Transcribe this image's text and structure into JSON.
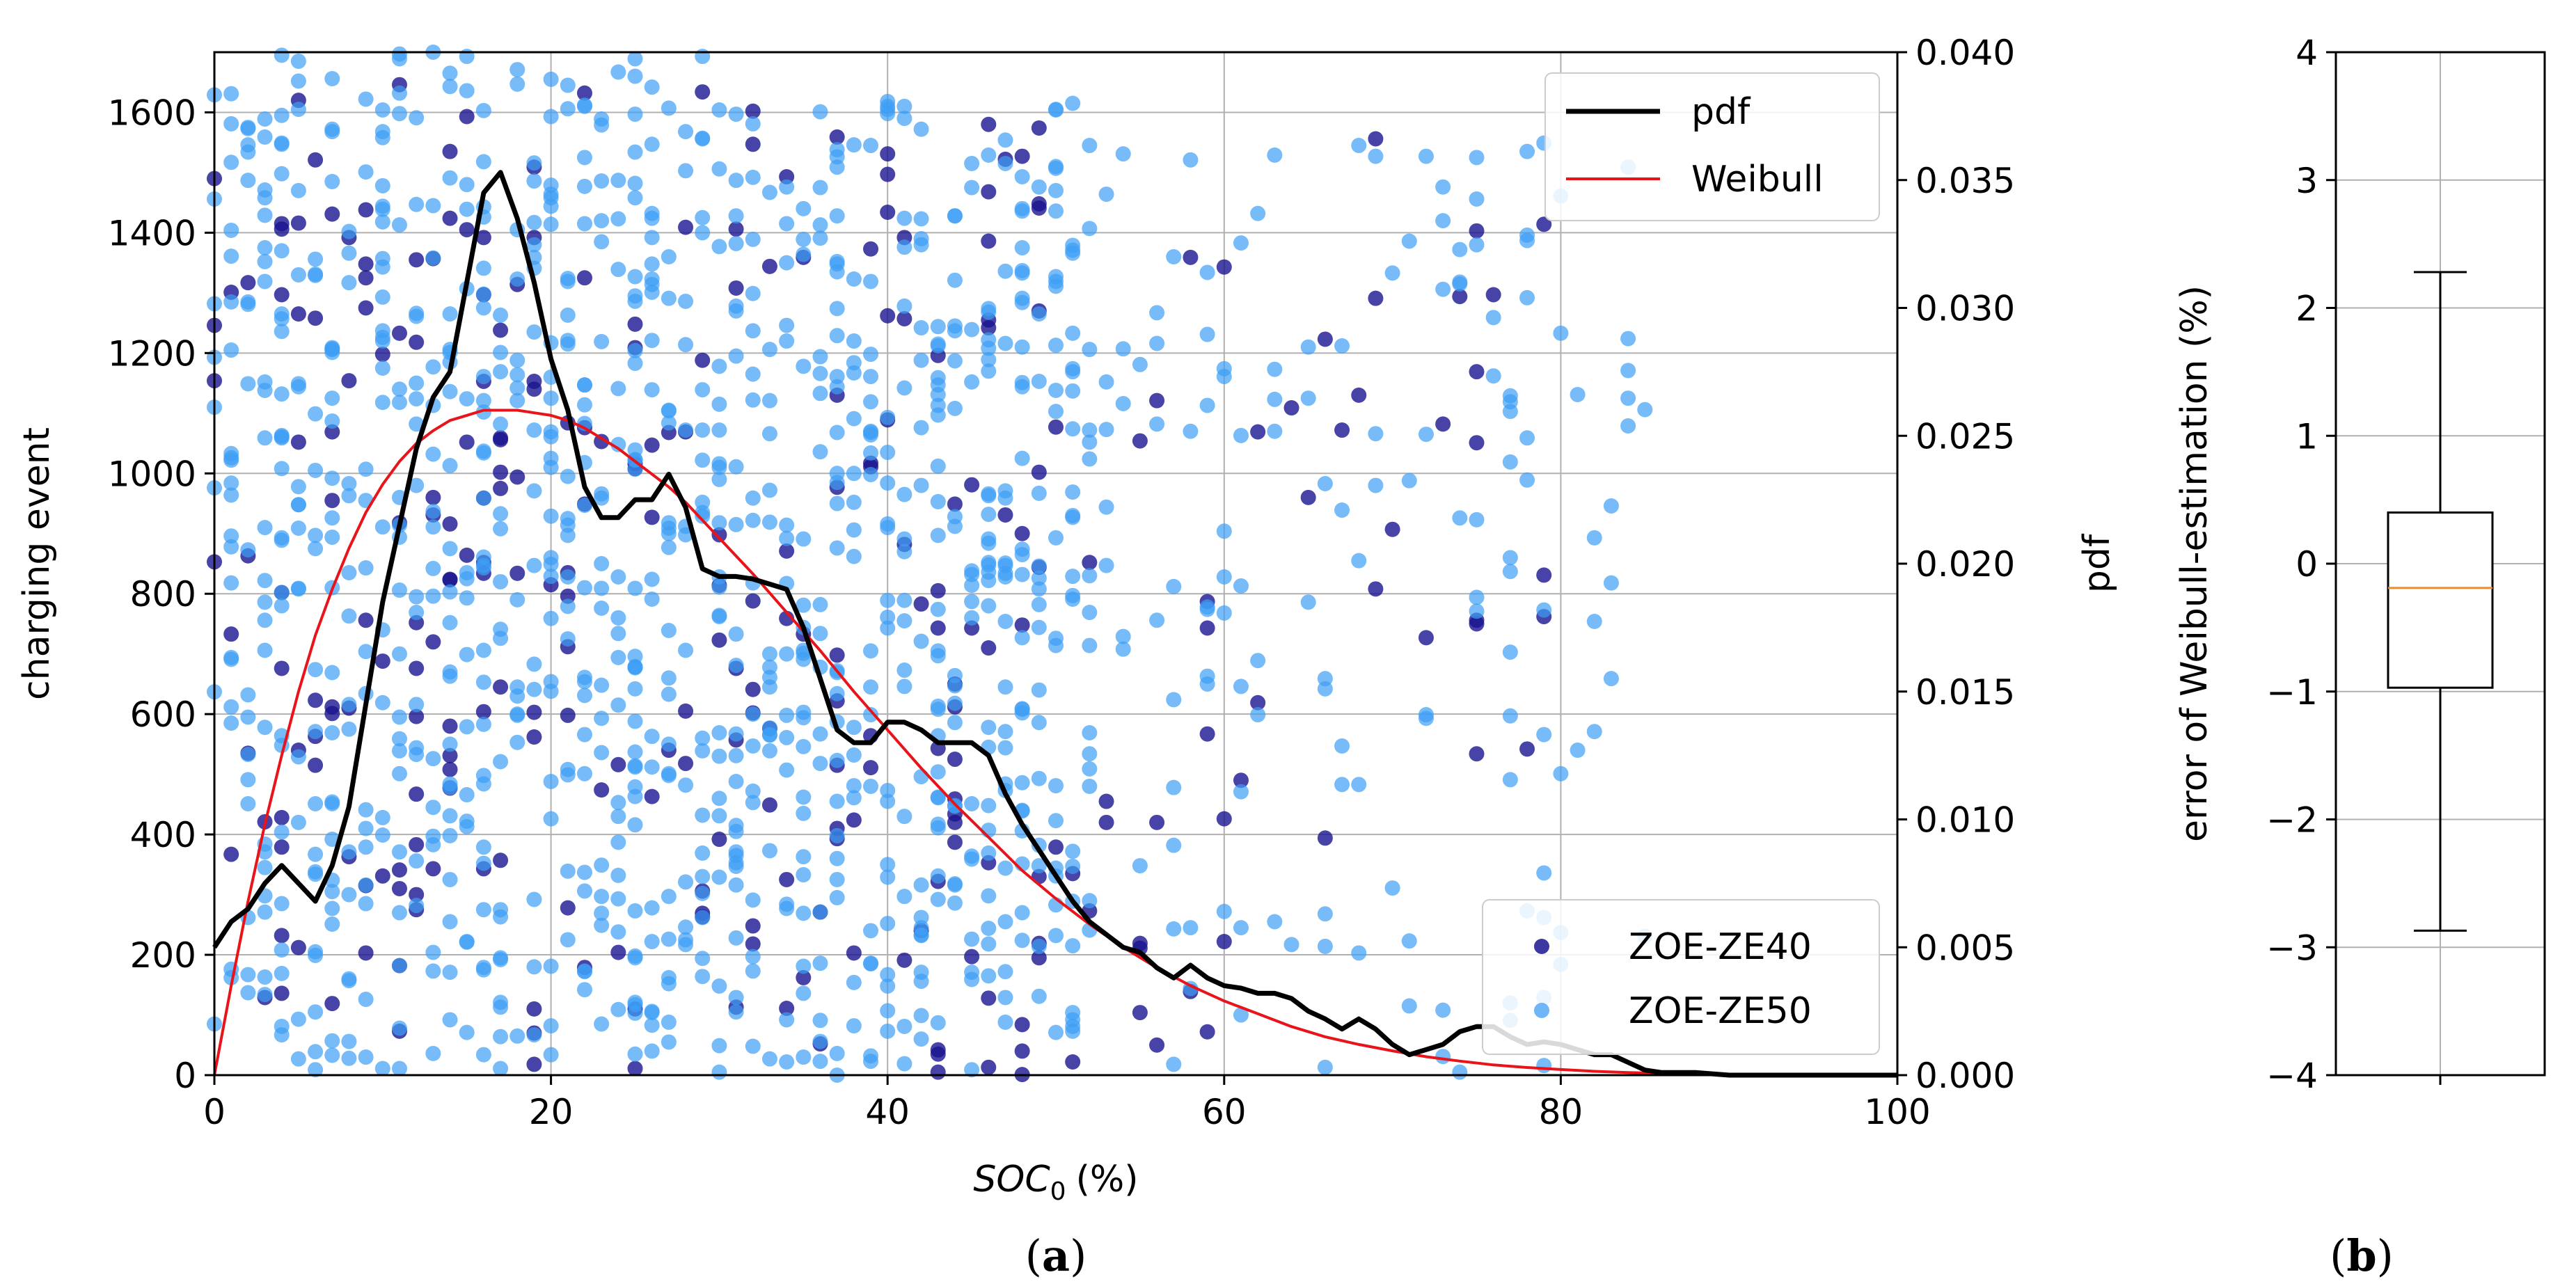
{
  "chart_data": [
    {
      "panel": "a",
      "caption_letter": "a",
      "type": "scatter",
      "xlabel_main": "SOC",
      "xlabel_sub": "0",
      "xlabel_unit": "(%)",
      "ylabel": "charging event",
      "y2label": "pdf",
      "xlim": [
        0,
        100
      ],
      "ylim": [
        0,
        1700
      ],
      "y2lim": [
        0,
        0.04
      ],
      "xticks": [
        0,
        20,
        40,
        60,
        80,
        100
      ],
      "xtick_labels": [
        "0",
        "20",
        "40",
        "60",
        "80",
        "100"
      ],
      "yticks": [
        0,
        200,
        400,
        600,
        800,
        1000,
        1200,
        1400,
        1600
      ],
      "ytick_labels": [
        "0",
        "200",
        "400",
        "600",
        "800",
        "1000",
        "1200",
        "1400",
        "1600"
      ],
      "y2ticks": [
        0,
        0.005,
        0.01,
        0.015,
        0.02,
        0.025,
        0.03,
        0.035,
        0.04
      ],
      "y2tick_labels": [
        "0.000",
        "0.005",
        "0.010",
        "0.015",
        "0.020",
        "0.025",
        "0.030",
        "0.035",
        "0.040"
      ],
      "grid": true,
      "legend_lines": [
        {
          "label": "pdf",
          "color": "#000000"
        },
        {
          "label": "Weibull",
          "color": "#e8141a"
        }
      ],
      "legend_lines_position": "top-right",
      "legend_scatter": [
        {
          "label": "ZOE-ZE40",
          "color": "#1a1490"
        },
        {
          "label": "ZOE-ZE50",
          "color": "#3d9ef5"
        }
      ],
      "legend_scatter_position": "bottom-right",
      "series": [
        {
          "name": "pdf",
          "axis": "y2",
          "color": "#000000",
          "x": [
            0,
            1,
            2,
            3,
            4,
            5,
            6,
            7,
            8,
            9,
            10,
            11,
            12,
            13,
            14,
            15,
            16,
            17,
            18,
            19,
            20,
            21,
            22,
            23,
            24,
            25,
            26,
            27,
            28,
            29,
            30,
            31,
            32,
            33,
            34,
            35,
            36,
            37,
            38,
            39,
            40,
            41,
            42,
            43,
            44,
            45,
            46,
            47,
            48,
            49,
            50,
            51,
            52,
            53,
            54,
            55,
            56,
            57,
            58,
            59,
            60,
            61,
            62,
            63,
            64,
            65,
            66,
            67,
            68,
            69,
            70,
            71,
            72,
            73,
            74,
            75,
            76,
            77,
            78,
            79,
            80,
            81,
            82,
            83,
            84,
            85,
            86,
            87,
            88,
            90,
            92,
            95,
            100
          ],
          "y": [
            0.005,
            0.006,
            0.0065,
            0.0075,
            0.0082,
            0.0075,
            0.0068,
            0.0082,
            0.0105,
            0.0145,
            0.0185,
            0.0215,
            0.0245,
            0.0265,
            0.0275,
            0.031,
            0.0345,
            0.0353,
            0.0335,
            0.031,
            0.028,
            0.026,
            0.023,
            0.0218,
            0.0218,
            0.0225,
            0.0225,
            0.0235,
            0.0222,
            0.0198,
            0.0195,
            0.0195,
            0.0194,
            0.0192,
            0.019,
            0.0175,
            0.0155,
            0.0135,
            0.013,
            0.013,
            0.0138,
            0.0138,
            0.0135,
            0.013,
            0.013,
            0.013,
            0.0125,
            0.011,
            0.0098,
            0.0088,
            0.0078,
            0.0068,
            0.006,
            0.0055,
            0.005,
            0.0048,
            0.0042,
            0.0038,
            0.0043,
            0.0038,
            0.0035,
            0.0034,
            0.0032,
            0.0032,
            0.003,
            0.0025,
            0.0022,
            0.0018,
            0.0022,
            0.0018,
            0.0012,
            0.0008,
            0.001,
            0.0012,
            0.0017,
            0.0019,
            0.0019,
            0.0015,
            0.0012,
            0.0013,
            0.0012,
            0.001,
            0.0008,
            0.0008,
            0.0005,
            0.0002,
            0.0001,
            0.0001,
            0.0001,
            0.0,
            0.0,
            0.0,
            0.0
          ]
        },
        {
          "name": "Weibull",
          "axis": "y2",
          "color": "#e8141a",
          "x": [
            0,
            1,
            2,
            3,
            4,
            5,
            6,
            7,
            8,
            9,
            10,
            11,
            12,
            13,
            14,
            15,
            16,
            17,
            18,
            19,
            20,
            21,
            22,
            23,
            24,
            25,
            26,
            27,
            28,
            29,
            30,
            32,
            34,
            36,
            38,
            40,
            42,
            44,
            46,
            48,
            50,
            52,
            54,
            56,
            58,
            60,
            62,
            64,
            66,
            68,
            70,
            72,
            74,
            76,
            78,
            80,
            82,
            84,
            86,
            88,
            90,
            92,
            95,
            100
          ],
          "y": [
            0.0,
            0.0035,
            0.0068,
            0.0098,
            0.0125,
            0.015,
            0.0172,
            0.019,
            0.0206,
            0.022,
            0.0231,
            0.024,
            0.0247,
            0.0252,
            0.0256,
            0.0258,
            0.026,
            0.026,
            0.026,
            0.0259,
            0.0258,
            0.0256,
            0.0253,
            0.0249,
            0.0245,
            0.024,
            0.0235,
            0.023,
            0.0224,
            0.0217,
            0.021,
            0.0196,
            0.0181,
            0.0166,
            0.015,
            0.0135,
            0.012,
            0.0106,
            0.0093,
            0.008,
            0.0069,
            0.0059,
            0.005,
            0.0042,
            0.0035,
            0.0029,
            0.0024,
            0.0019,
            0.0015,
            0.0012,
            0.00095,
            0.00072,
            0.00055,
            0.0004,
            0.0003,
            0.00022,
            0.00015,
            0.0001,
            7e-05,
            5e-05,
            3e-05,
            2e-05,
            1e-05,
            0.0
          ]
        },
        {
          "name": "ZOE-ZE40",
          "axis": "y",
          "marker": "dot",
          "color": "#1a1490",
          "count": 300,
          "ranges": [
            [
              0,
              30,
              0,
              1700,
              150
            ],
            [
              30,
              50,
              0,
              1620,
              100
            ],
            [
              50,
              80,
              0,
              1600,
              50
            ]
          ]
        },
        {
          "name": "ZOE-ZE50",
          "axis": "y",
          "marker": "dot",
          "color": "#3d9ef5",
          "count": 1200,
          "ranges": [
            [
              0,
              30,
              0,
              1700,
              600
            ],
            [
              30,
              52,
              0,
              1620,
              450
            ],
            [
              52,
              85,
              0,
              1550,
              150
            ]
          ]
        }
      ]
    },
    {
      "panel": "b",
      "caption_letter": "b",
      "type": "box",
      "ylabel": "error of Weibull-estimation (%)",
      "ylim": [
        -4,
        4
      ],
      "yticks": [
        -4,
        -3,
        -2,
        -1,
        0,
        1,
        2,
        3,
        4
      ],
      "ytick_labels": [
        "−4",
        "−3",
        "−2",
        "−1",
        "0",
        "1",
        "2",
        "3",
        "4"
      ],
      "grid": true,
      "box": {
        "whisker_low": -2.87,
        "q1": -0.97,
        "median": -0.19,
        "q3": 0.4,
        "whisker_high": 2.28,
        "median_color": "#f08a24"
      }
    }
  ]
}
